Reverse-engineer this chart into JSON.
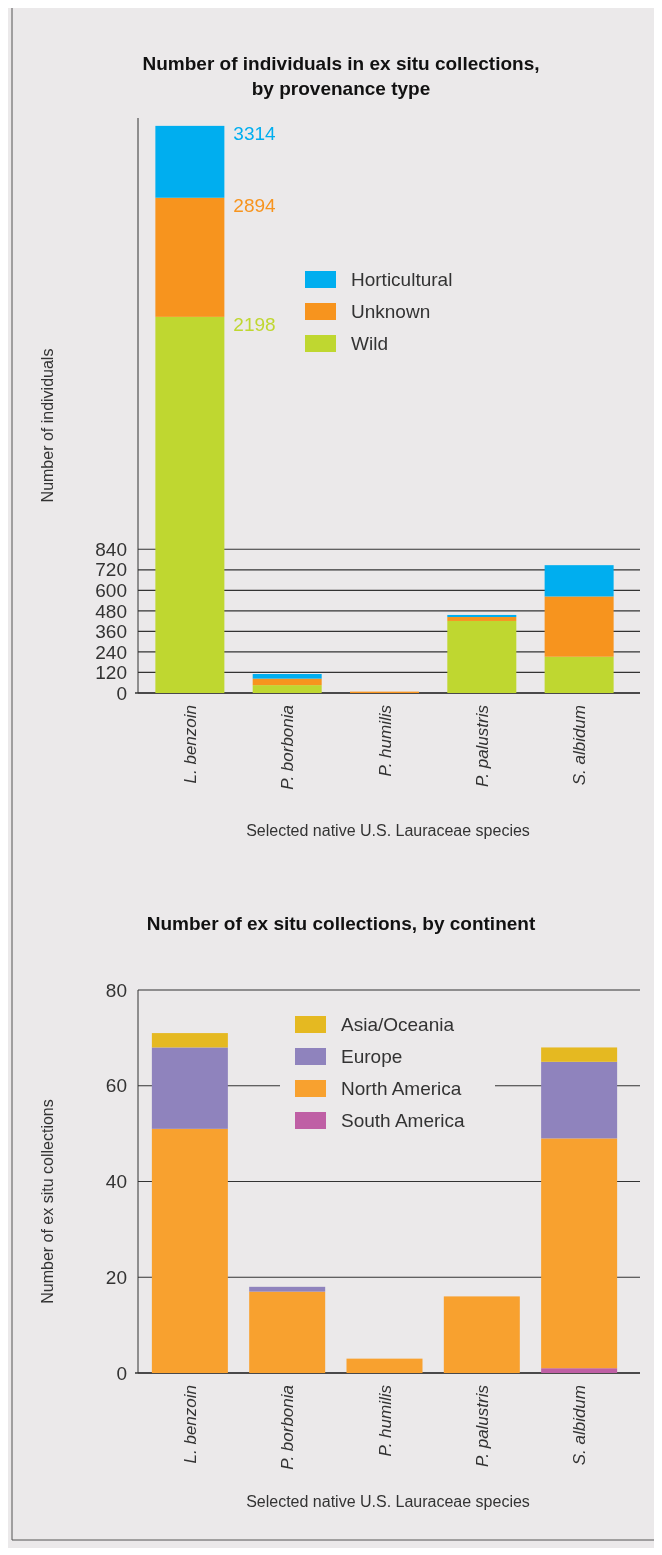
{
  "chart_data": [
    {
      "type": "bar",
      "title": "Number of individuals in ex situ collections, by provenance type",
      "xlabel": "Selected native U.S. Lauraceae species",
      "ylabel": "Number of individuals",
      "categories": [
        "L. benzoin",
        "P. borbonia",
        "P. humilis",
        "P. palustris",
        "S. albidum"
      ],
      "stacked": true,
      "series": [
        {
          "name": "Wild",
          "color": "#bfd730",
          "values": [
            2198,
            46,
            0,
            421,
            212
          ]
        },
        {
          "name": "Unknown",
          "color": "#f7941e",
          "values": [
            696,
            38,
            8,
            23,
            352
          ]
        },
        {
          "name": "Horticultural",
          "color": "#00aeef",
          "values": [
            420,
            27,
            0,
            12,
            183
          ]
        }
      ],
      "annotations": [
        {
          "text": "3314",
          "x": "L. benzoin",
          "y": 3314
        },
        {
          "text": "2894",
          "x": "L. benzoin",
          "y": 2894
        },
        {
          "text": "2198",
          "x": "L. benzoin",
          "y": 2198
        }
      ],
      "ylim": [
        0,
        3360
      ],
      "yticks": [
        0,
        120,
        240,
        360,
        480,
        600,
        720,
        840
      ],
      "grid": "y",
      "legend": "top"
    },
    {
      "type": "bar",
      "title": "Number of ex situ collections, by continent",
      "xlabel": "Selected native U.S. Lauraceae species",
      "ylabel": "Number of ex situ collections",
      "categories": [
        "L. benzoin",
        "P. borbonia",
        "P. humilis",
        "P. palustris",
        "S. albidum"
      ],
      "stacked": true,
      "series": [
        {
          "name": "South America",
          "color": "#bf5fa5",
          "values": [
            0,
            0,
            0,
            0,
            1
          ]
        },
        {
          "name": "North America",
          "color": "#f8a12f",
          "values": [
            51,
            17,
            3,
            16,
            48
          ]
        },
        {
          "name": "Europe",
          "color": "#8f83bd",
          "values": [
            17,
            1,
            0,
            0,
            16
          ]
        },
        {
          "name": "Asia/Oceania",
          "color": "#e5b921",
          "values": [
            3,
            0,
            0,
            0,
            3
          ]
        }
      ],
      "ylim": [
        0,
        80
      ],
      "yticks": [
        0,
        20,
        40,
        60,
        80
      ],
      "grid": "y",
      "legend": "top"
    }
  ]
}
